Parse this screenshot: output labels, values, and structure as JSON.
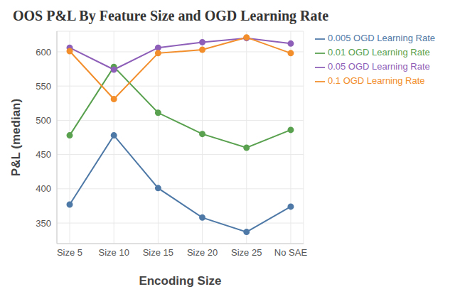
{
  "chart_data": {
    "type": "line",
    "title": "OOS P&L By Feature Size and OGD Learning Rate",
    "x_label": "Encoding Size",
    "y_label": "P&L (median)",
    "categories": [
      "Size 5",
      "Size 10",
      "Size 15",
      "Size 20",
      "Size 25",
      "No SAE"
    ],
    "series": [
      {
        "name": "0.005 OGD Learning Rate",
        "color": "#4e79a7",
        "values": [
          377,
          478,
          401,
          358,
          337,
          374
        ]
      },
      {
        "name": "0.01 OGD Learning Rate",
        "color": "#59a14f",
        "values": [
          478,
          578,
          511,
          480,
          460,
          486
        ]
      },
      {
        "name": "0.05 OGD Learning Rate",
        "color": "#8e5fb8",
        "values": [
          606,
          574,
          606,
          614,
          620,
          612
        ]
      },
      {
        "name": "0.1 OGD Learning Rate",
        "color": "#f28e2b",
        "values": [
          601,
          531,
          598,
          603,
          621,
          598
        ]
      }
    ],
    "ylim": [
      320,
      630
    ],
    "yticks": [
      350,
      400,
      450,
      500,
      550,
      600
    ],
    "grid": true,
    "legend": "right",
    "marker": "circle"
  }
}
